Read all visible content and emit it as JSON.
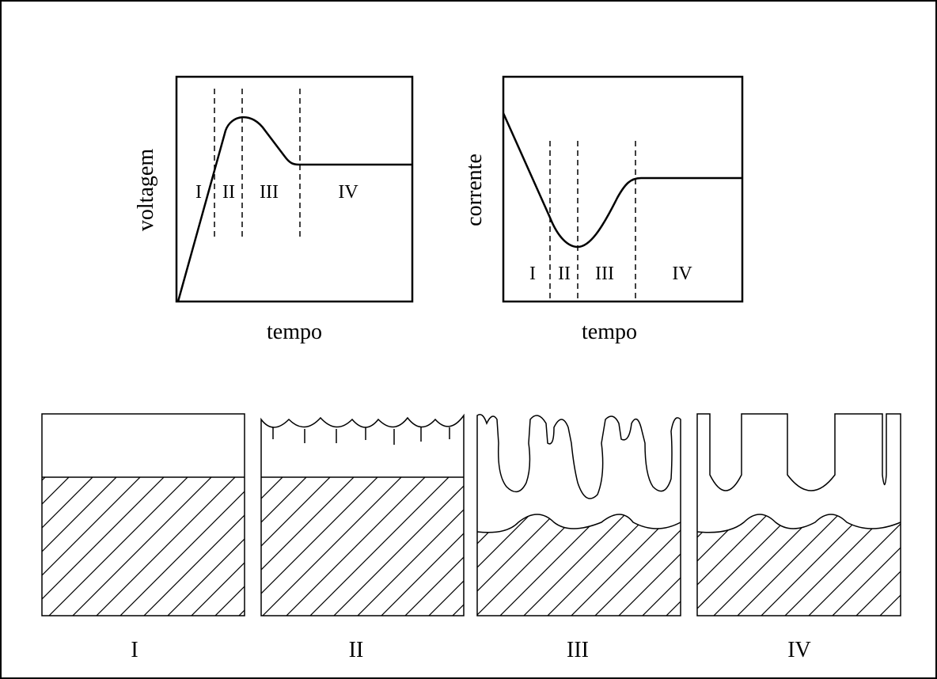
{
  "plots": [
    {
      "y_label": "voltagem",
      "x_label": "tempo",
      "stages": [
        "I",
        "II",
        "III",
        "IV"
      ]
    },
    {
      "y_label": "corrente",
      "x_label": "tempo",
      "stages": [
        "I",
        "II",
        "III",
        "IV"
      ]
    }
  ],
  "panels": [
    {
      "label": "I"
    },
    {
      "label": "II"
    },
    {
      "label": "III"
    },
    {
      "label": "IV"
    }
  ]
}
